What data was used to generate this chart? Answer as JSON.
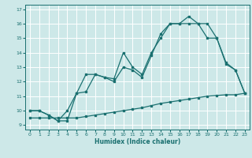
{
  "xlabel": "Humidex (Indice chaleur)",
  "bg_color": "#cde8e8",
  "grid_color": "#ffffff",
  "line_color": "#1a7070",
  "xlim": [
    -0.5,
    23.5
  ],
  "ylim": [
    8.7,
    17.3
  ],
  "xticks": [
    0,
    1,
    2,
    3,
    4,
    5,
    6,
    7,
    8,
    9,
    10,
    11,
    12,
    13,
    14,
    15,
    16,
    17,
    18,
    19,
    20,
    21,
    22,
    23
  ],
  "yticks": [
    9,
    10,
    11,
    12,
    13,
    14,
    15,
    16,
    17
  ],
  "series1_x": [
    0,
    1,
    2,
    3,
    4,
    5,
    6,
    7,
    8,
    9,
    10,
    11,
    12,
    13,
    14,
    15,
    16,
    17,
    18,
    19,
    20,
    21,
    22,
    23
  ],
  "series1_y": [
    10.0,
    10.0,
    9.7,
    9.3,
    9.3,
    11.2,
    12.5,
    12.5,
    12.3,
    12.2,
    14.0,
    13.0,
    12.5,
    14.0,
    15.0,
    16.0,
    16.0,
    16.5,
    16.0,
    16.0,
    15.0,
    13.3,
    12.8,
    11.2
  ],
  "series2_x": [
    0,
    1,
    2,
    3,
    4,
    5,
    6,
    7,
    8,
    9,
    10,
    11,
    12,
    13,
    14,
    15,
    16,
    17,
    18,
    19,
    20,
    21,
    22,
    23
  ],
  "series2_y": [
    10.0,
    10.0,
    9.7,
    9.3,
    10.0,
    11.2,
    11.3,
    12.5,
    12.3,
    12.0,
    13.0,
    12.8,
    12.3,
    13.8,
    15.3,
    16.0,
    16.0,
    16.0,
    16.0,
    15.0,
    15.0,
    13.2,
    12.8,
    11.2
  ],
  "series3_x": [
    0,
    1,
    2,
    3,
    4,
    5,
    6,
    7,
    8,
    9,
    10,
    11,
    12,
    13,
    14,
    15,
    16,
    17,
    18,
    19,
    20,
    21,
    22,
    23
  ],
  "series3_y": [
    9.5,
    9.5,
    9.5,
    9.5,
    9.5,
    9.5,
    9.6,
    9.7,
    9.8,
    9.9,
    10.0,
    10.1,
    10.2,
    10.35,
    10.5,
    10.6,
    10.7,
    10.8,
    10.9,
    11.0,
    11.05,
    11.1,
    11.1,
    11.2
  ]
}
